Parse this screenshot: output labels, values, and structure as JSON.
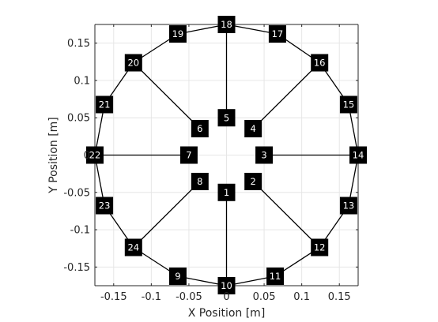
{
  "chart_data": {
    "type": "scatter",
    "title": "",
    "xlabel": "X Position [m]",
    "ylabel": "Y Position [m]",
    "xlim": [
      -0.175,
      0.175
    ],
    "ylim": [
      -0.175,
      0.175
    ],
    "grid": true,
    "xticks": [
      -0.15,
      -0.1,
      -0.05,
      0,
      0.05,
      0.1,
      0.15
    ],
    "yticks": [
      -0.15,
      -0.1,
      -0.05,
      0,
      0.05,
      0.1,
      0.15
    ],
    "xtick_labels": [
      "-0.15",
      "-0.1",
      "-0.05",
      "0",
      "0.05",
      "0.1",
      "0.15"
    ],
    "ytick_labels": [
      "-0.15",
      "-0.1",
      "-0.05",
      "0",
      "0.05",
      "0.1",
      "0.15"
    ],
    "nodes": [
      {
        "label": "1",
        "x": 0.0,
        "y": -0.05
      },
      {
        "label": "2",
        "x": 0.0354,
        "y": -0.0354
      },
      {
        "label": "3",
        "x": 0.05,
        "y": 0.0
      },
      {
        "label": "4",
        "x": 0.0354,
        "y": 0.0354
      },
      {
        "label": "5",
        "x": 0.0,
        "y": 0.05
      },
      {
        "label": "6",
        "x": -0.0354,
        "y": 0.0354
      },
      {
        "label": "7",
        "x": -0.05,
        "y": 0.0
      },
      {
        "label": "8",
        "x": -0.0354,
        "y": -0.0354
      },
      {
        "label": "9",
        "x": -0.0647,
        "y": -0.1623
      },
      {
        "label": "10",
        "x": 0.0,
        "y": -0.175
      },
      {
        "label": "11",
        "x": 0.0647,
        "y": -0.1623
      },
      {
        "label": "12",
        "x": 0.1237,
        "y": -0.1237
      },
      {
        "label": "13",
        "x": 0.1623,
        "y": -0.0677
      },
      {
        "label": "14",
        "x": 0.175,
        "y": 0.0
      },
      {
        "label": "15",
        "x": 0.1623,
        "y": 0.0677
      },
      {
        "label": "16",
        "x": 0.1237,
        "y": 0.1237
      },
      {
        "label": "17",
        "x": 0.0677,
        "y": 0.1623
      },
      {
        "label": "18",
        "x": 0.0,
        "y": 0.175
      },
      {
        "label": "19",
        "x": -0.0647,
        "y": 0.1623
      },
      {
        "label": "20",
        "x": -0.1237,
        "y": 0.1237
      },
      {
        "label": "21",
        "x": -0.1623,
        "y": 0.0677
      },
      {
        "label": "22",
        "x": -0.175,
        "y": 0.0
      },
      {
        "label": "23",
        "x": -0.1623,
        "y": -0.0677
      },
      {
        "label": "24",
        "x": -0.1237,
        "y": -0.1237
      }
    ],
    "edges": [
      [
        "1",
        "10"
      ],
      [
        "2",
        "12"
      ],
      [
        "3",
        "14"
      ],
      [
        "4",
        "16"
      ],
      [
        "5",
        "18"
      ],
      [
        "6",
        "20"
      ],
      [
        "7",
        "22"
      ],
      [
        "8",
        "24"
      ],
      [
        "9",
        "10"
      ],
      [
        "10",
        "11"
      ],
      [
        "11",
        "12"
      ],
      [
        "12",
        "13"
      ],
      [
        "13",
        "14"
      ],
      [
        "14",
        "15"
      ],
      [
        "15",
        "16"
      ],
      [
        "16",
        "17"
      ],
      [
        "17",
        "18"
      ],
      [
        "18",
        "19"
      ],
      [
        "19",
        "20"
      ],
      [
        "20",
        "21"
      ],
      [
        "21",
        "22"
      ],
      [
        "22",
        "23"
      ],
      [
        "23",
        "24"
      ],
      [
        "24",
        "9"
      ]
    ],
    "colors": {
      "background": "#ffffff",
      "grid": "#e6e6e6",
      "axis": "#262626",
      "edge": "#000000",
      "node_fill": "#000000",
      "node_text": "#ffffff"
    }
  }
}
